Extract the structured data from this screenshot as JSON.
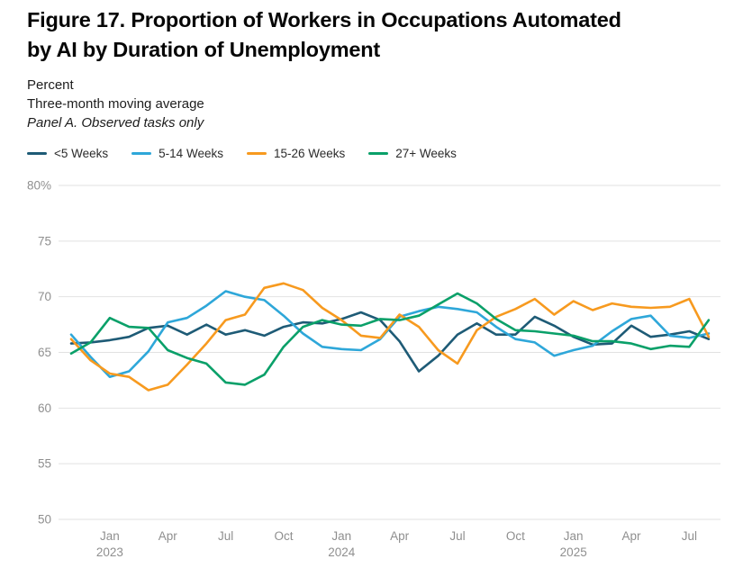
{
  "header": {
    "title_line1": "Figure 17. Proportion of Workers in Occupations Automated",
    "title_line2": "by AI by Duration of Unemployment",
    "subtitle1": "Percent",
    "subtitle2": "Three-month moving average",
    "panel_label": "Panel A. Observed tasks only"
  },
  "legend": [
    {
      "label": "<5 Weeks",
      "color": "#1e5b76"
    },
    {
      "label": "5-14 Weeks",
      "color": "#2ea7d9"
    },
    {
      "label": "15-26 Weeks",
      "color": "#f79a1f"
    },
    {
      "label": "27+ Weeks",
      "color": "#0aa069"
    }
  ],
  "chart_data": {
    "type": "line",
    "x_unit": "month",
    "x_months": [
      "Nov 2022",
      "Dec 2022",
      "Jan 2023",
      "Feb 2023",
      "Mar 2023",
      "Apr 2023",
      "May 2023",
      "Jun 2023",
      "Jul 2023",
      "Aug 2023",
      "Sep 2023",
      "Oct 2023",
      "Nov 2023",
      "Dec 2023",
      "Jan 2024",
      "Feb 2024",
      "Mar 2024",
      "Apr 2024",
      "May 2024",
      "Jun 2024",
      "Jul 2024",
      "Aug 2024",
      "Sep 2024",
      "Oct 2024",
      "Nov 2024",
      "Dec 2024",
      "Jan 2025",
      "Feb 2025",
      "Mar 2025",
      "Apr 2025",
      "May 2025",
      "Jun 2025",
      "Jul 2025",
      "Aug 2025"
    ],
    "series": [
      {
        "name": "<5 Weeks",
        "color": "#1e5b76",
        "values": [
          65.8,
          65.9,
          66.1,
          66.4,
          67.2,
          67.4,
          66.6,
          67.5,
          66.6,
          67.0,
          66.5,
          67.3,
          67.7,
          67.6,
          68.0,
          68.6,
          67.9,
          66.0,
          63.3,
          64.7,
          66.6,
          67.6,
          66.6,
          66.6,
          68.2,
          67.4,
          66.4,
          65.7,
          65.8,
          67.4,
          66.4,
          66.6,
          66.9,
          66.2
        ]
      },
      {
        "name": "5-14 Weeks",
        "color": "#2ea7d9",
        "values": [
          66.6,
          64.6,
          62.8,
          63.3,
          65.1,
          67.7,
          68.1,
          69.2,
          70.5,
          70.0,
          69.7,
          68.3,
          66.7,
          65.5,
          65.3,
          65.2,
          66.2,
          68.2,
          68.7,
          69.1,
          68.9,
          68.6,
          67.3,
          66.2,
          65.9,
          64.7,
          65.2,
          65.6,
          66.9,
          68.0,
          68.3,
          66.5,
          66.3,
          66.7
        ]
      },
      {
        "name": "15-26 Weeks",
        "color": "#f79a1f",
        "values": [
          66.2,
          64.3,
          63.1,
          62.8,
          61.6,
          62.1,
          63.9,
          65.8,
          67.9,
          68.4,
          70.8,
          71.2,
          70.6,
          69.0,
          67.9,
          66.5,
          66.3,
          68.4,
          67.3,
          65.2,
          64.0,
          67.0,
          68.2,
          68.9,
          69.8,
          68.4,
          69.6,
          68.8,
          69.4,
          69.1,
          69.0,
          69.1,
          69.8,
          66.4
        ]
      },
      {
        "name": "27+ Weeks",
        "color": "#0aa069",
        "values": [
          64.9,
          65.9,
          68.1,
          67.3,
          67.2,
          65.2,
          64.5,
          64.0,
          62.3,
          62.1,
          63.0,
          65.5,
          67.3,
          67.9,
          67.5,
          67.4,
          68.0,
          67.9,
          68.3,
          69.3,
          70.3,
          69.4,
          68.0,
          67.0,
          66.9,
          66.7,
          66.5,
          66.0,
          66.0,
          65.8,
          65.3,
          65.6,
          65.5,
          67.9
        ]
      }
    ],
    "ylim": [
      50,
      80
    ],
    "yticks": [
      {
        "value": 80,
        "label": "80%"
      },
      {
        "value": 75,
        "label": "75"
      },
      {
        "value": 70,
        "label": "70"
      },
      {
        "value": 65,
        "label": "65"
      },
      {
        "value": 60,
        "label": "60"
      },
      {
        "value": 55,
        "label": "55"
      },
      {
        "value": 50,
        "label": "50"
      }
    ],
    "xticks": [
      {
        "index": 2,
        "month": "Jan",
        "year": "2023"
      },
      {
        "index": 5,
        "month": "Apr"
      },
      {
        "index": 8,
        "month": "Jul"
      },
      {
        "index": 11,
        "month": "Oct"
      },
      {
        "index": 14,
        "month": "Jan",
        "year": "2024"
      },
      {
        "index": 17,
        "month": "Apr"
      },
      {
        "index": 20,
        "month": "Jul"
      },
      {
        "index": 23,
        "month": "Oct"
      },
      {
        "index": 26,
        "month": "Jan",
        "year": "2025"
      },
      {
        "index": 29,
        "month": "Apr"
      },
      {
        "index": 32,
        "month": "Jul"
      }
    ],
    "grid": "horizontal",
    "legend_position": "top-left"
  }
}
